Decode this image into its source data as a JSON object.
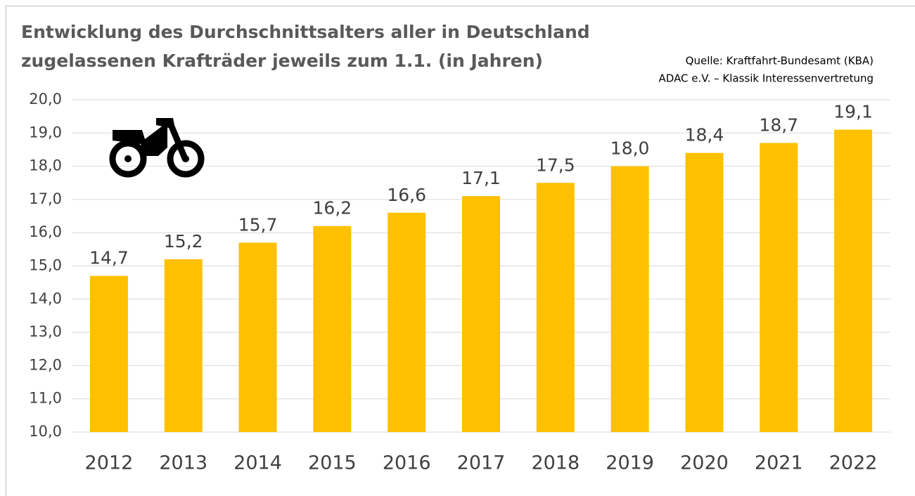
{
  "chart_data": {
    "type": "bar",
    "title": [
      "Entwicklung des Durchschnittsalters aller in Deutschland",
      "zugelassenen Krafträder jeweils zum 1.1. (in Jahren)"
    ],
    "source": [
      "Quelle: Kraftfahrt-Bundesamt (KBA)",
      "ADAC e.V. – Klassik Interessenvertretung"
    ],
    "categories": [
      "2012",
      "2013",
      "2014",
      "2015",
      "2016",
      "2017",
      "2018",
      "2019",
      "2020",
      "2021",
      "2022"
    ],
    "values": [
      14.7,
      15.2,
      15.7,
      16.2,
      16.6,
      17.1,
      17.5,
      18.0,
      18.4,
      18.7,
      19.1
    ],
    "value_labels": [
      "14,7",
      "15,2",
      "15,7",
      "16,2",
      "16,6",
      "17,1",
      "17,5",
      "18,0",
      "18,4",
      "18,7",
      "19,1"
    ],
    "color": "#ffc000",
    "ylim": [
      10,
      20
    ],
    "yticks": [
      {
        "value": 10,
        "label": "10,0"
      },
      {
        "value": 11,
        "label": "11,0"
      },
      {
        "value": 12,
        "label": "12,0"
      },
      {
        "value": 13,
        "label": "13,0"
      },
      {
        "value": 14,
        "label": "14,0"
      },
      {
        "value": 15,
        "label": "15,0"
      },
      {
        "value": 16,
        "label": "16,0"
      },
      {
        "value": 17,
        "label": "17,0"
      },
      {
        "value": 18,
        "label": "18,0"
      },
      {
        "value": 19,
        "label": "19,0"
      },
      {
        "value": 20,
        "label": "20,0"
      }
    ],
    "grid": true
  }
}
